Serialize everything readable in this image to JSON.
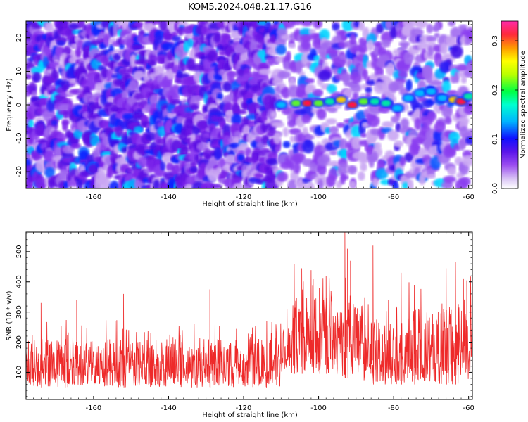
{
  "title": "KOM5.2024.048.21.17.G16",
  "chart_data": [
    {
      "type": "heatmap",
      "xlabel": "Height of straight line (km)",
      "ylabel": "Frequency (Hz)",
      "xlim": [
        -178,
        -59
      ],
      "ylim": [
        -25,
        25
      ],
      "xticks": [
        -160,
        -140,
        -120,
        -100,
        -80,
        -60
      ],
      "yticks": [
        -20,
        -10,
        0,
        10,
        20
      ],
      "grid": false,
      "colorbar": {
        "label": "Normalized spectral amplitude",
        "range": [
          0,
          0.34
        ],
        "ticks": [
          0.0,
          0.1,
          0.2,
          0.3
        ],
        "colors": [
          "#ffffff",
          "#c79bf2",
          "#8b2cf0",
          "#4b0fe8",
          "#0000ff",
          "#00c8ff",
          "#00ff66",
          "#ffff00",
          "#ff8a00",
          "#ff1a55",
          "#ff2fa0"
        ]
      },
      "ridge": {
        "x": [
          -110,
          -106,
          -103,
          -100,
          -97,
          -94,
          -91,
          -88,
          -85,
          -82,
          -79,
          -76,
          -73,
          -70,
          -67,
          -64,
          -62,
          -60
        ],
        "y": [
          0,
          0.5,
          0.5,
          0.5,
          1,
          1.5,
          0,
          1,
          1,
          0.5,
          -1,
          2,
          3.5,
          4,
          2,
          1.5,
          1,
          2.5
        ],
        "amplitude": [
          0.12,
          0.2,
          0.28,
          0.22,
          0.18,
          0.24,
          0.29,
          0.2,
          0.18,
          0.16,
          0.14,
          0.12,
          0.12,
          0.12,
          0.14,
          0.24,
          0.3,
          0.16
        ]
      }
    },
    {
      "type": "line",
      "xlabel": "Height of straight line (km)",
      "ylabel": "SNR (10 * v/v)",
      "xlim": [
        -178,
        -59
      ],
      "ylim": [
        10,
        565
      ],
      "xticks": [
        -160,
        -140,
        -120,
        -100,
        -80,
        -60
      ],
      "yticks": [
        100,
        200,
        300,
        400,
        500
      ],
      "grid": false,
      "color": "#ee2a2a",
      "baseline_segments": [
        {
          "x": [
            -178,
            -110
          ],
          "low": 50,
          "mid": 115,
          "high": 275
        },
        {
          "x": [
            -110,
            -107
          ],
          "low": 80,
          "mid": 150,
          "high": 320
        },
        {
          "x": [
            -107,
            -96
          ],
          "low": 95,
          "mid": 230,
          "high": 440
        },
        {
          "x": [
            -96,
            -88
          ],
          "low": 80,
          "mid": 185,
          "high": 430
        },
        {
          "x": [
            -88,
            -76
          ],
          "low": 60,
          "mid": 140,
          "high": 350
        },
        {
          "x": [
            -76,
            -59
          ],
          "low": 60,
          "mid": 160,
          "high": 420
        }
      ],
      "peaks": [
        {
          "x": -106.5,
          "y": 460
        },
        {
          "x": -104.5,
          "y": 445
        },
        {
          "x": -99.8,
          "y": 380
        },
        {
          "x": -98,
          "y": 420
        },
        {
          "x": -93,
          "y": 565
        },
        {
          "x": -92.3,
          "y": 510
        },
        {
          "x": -91.5,
          "y": 470
        },
        {
          "x": -85.5,
          "y": 520
        },
        {
          "x": -78,
          "y": 430
        },
        {
          "x": -74.5,
          "y": 390
        },
        {
          "x": -66,
          "y": 445
        },
        {
          "x": -63.5,
          "y": 465
        },
        {
          "x": -60.5,
          "y": 405
        },
        {
          "x": -129,
          "y": 375
        },
        {
          "x": -152,
          "y": 360
        },
        {
          "x": -164.5,
          "y": 340
        },
        {
          "x": -174,
          "y": 330
        }
      ]
    }
  ]
}
